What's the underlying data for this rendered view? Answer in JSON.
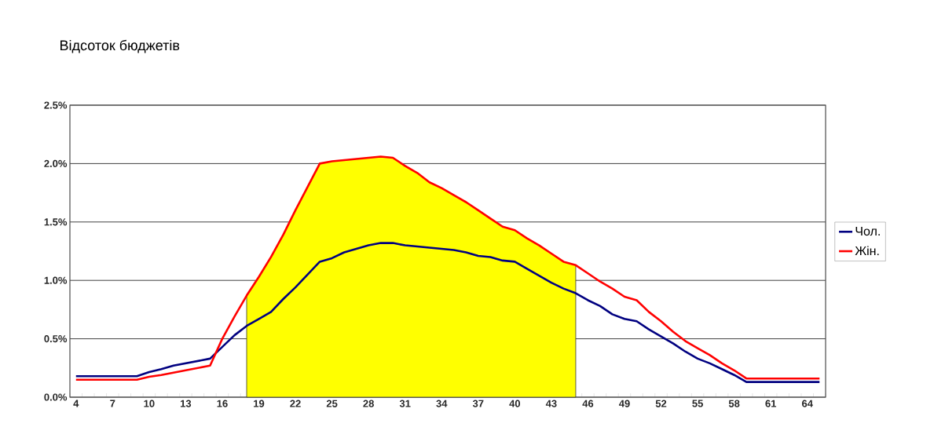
{
  "chart_data": {
    "type": "line",
    "title": "Відсоток бюджетів",
    "categories": [
      "4",
      null,
      null,
      "7",
      null,
      null,
      "10",
      null,
      null,
      "13",
      null,
      null,
      "16",
      null,
      null,
      "19",
      null,
      null,
      "22",
      null,
      null,
      "25",
      null,
      null,
      "28",
      null,
      null,
      "31",
      null,
      null,
      "34",
      null,
      null,
      "37",
      null,
      null,
      "40",
      null,
      null,
      "43",
      null,
      null,
      "46",
      null,
      null,
      "49",
      null,
      null,
      "52",
      null,
      null,
      "55",
      null,
      null,
      "58",
      null,
      null,
      "61",
      null,
      null,
      "64",
      null
    ],
    "series": [
      {
        "type": "area",
        "color": "#ffff00",
        "values": [
          null,
          null,
          null,
          null,
          null,
          null,
          null,
          null,
          null,
          null,
          null,
          null,
          null,
          null,
          0.87,
          1.03,
          1.2,
          1.39,
          1.6,
          1.8,
          2.0,
          2.02,
          2.03,
          2.04,
          2.05,
          2.06,
          2.05,
          1.98,
          1.92,
          1.84,
          1.79,
          1.73,
          1.67,
          1.6,
          1.53,
          1.46,
          1.43,
          1.36,
          1.3,
          1.23,
          1.16,
          1.13,
          null,
          null,
          null,
          null,
          null,
          null,
          null,
          null,
          null,
          null,
          null,
          null,
          null,
          null,
          null,
          null,
          null,
          null,
          null,
          null
        ]
      },
      {
        "name": "Чол.",
        "color": "#000080",
        "values": [
          0.18,
          0.18,
          0.18,
          0.18,
          0.18,
          0.18,
          0.215,
          0.24,
          0.27,
          0.29,
          0.31,
          0.33,
          0.43,
          0.53,
          0.61,
          0.67,
          0.73,
          0.84,
          0.94,
          1.05,
          1.16,
          1.19,
          1.24,
          1.27,
          1.3,
          1.32,
          1.32,
          1.3,
          1.29,
          1.28,
          1.27,
          1.26,
          1.24,
          1.21,
          1.2,
          1.17,
          1.16,
          1.1,
          1.04,
          0.98,
          0.93,
          0.89,
          0.83,
          0.78,
          0.71,
          0.67,
          0.65,
          0.58,
          0.52,
          0.46,
          0.39,
          0.33,
          0.29,
          0.24,
          0.19,
          0.13,
          0.13,
          0.13,
          0.13,
          0.13,
          0.13,
          0.13
        ]
      },
      {
        "name": "Жін.",
        "color": "#ff0000",
        "values": [
          0.15,
          0.15,
          0.15,
          0.15,
          0.15,
          0.15,
          0.175,
          0.19,
          0.21,
          0.23,
          0.25,
          0.27,
          0.5,
          0.69,
          0.87,
          1.03,
          1.2,
          1.39,
          1.6,
          1.8,
          2.0,
          2.02,
          2.03,
          2.04,
          2.05,
          2.06,
          2.05,
          1.98,
          1.92,
          1.84,
          1.79,
          1.73,
          1.67,
          1.6,
          1.53,
          1.46,
          1.43,
          1.36,
          1.3,
          1.23,
          1.16,
          1.13,
          1.06,
          0.99,
          0.93,
          0.86,
          0.83,
          0.73,
          0.65,
          0.56,
          0.48,
          0.42,
          0.36,
          0.29,
          0.23,
          0.16,
          0.16,
          0.16,
          0.16,
          0.16,
          0.16,
          0.16
        ]
      }
    ],
    "ylim": [
      0,
      2.5
    ],
    "yticks": [
      {
        "value": 0,
        "label": "0.0%"
      },
      {
        "value": 0.5,
        "label": "0.5%"
      },
      {
        "value": 1.0,
        "label": "1.0%"
      },
      {
        "value": 1.5,
        "label": "1.5%"
      },
      {
        "value": 2.0,
        "label": "2.0%"
      },
      {
        "value": 2.5,
        "label": "2.5%"
      }
    ],
    "grid": "y",
    "legend": "right"
  }
}
